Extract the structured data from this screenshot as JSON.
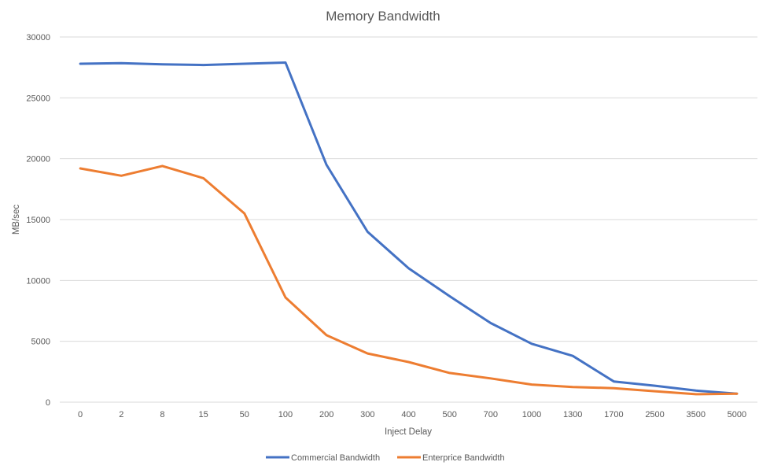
{
  "chart_data": {
    "type": "line",
    "title": "Memory Bandwidth",
    "xlabel": "Inject Delay",
    "ylabel": "MB/sec",
    "categories": [
      "0",
      "2",
      "8",
      "15",
      "50",
      "100",
      "200",
      "300",
      "400",
      "500",
      "700",
      "1000",
      "1300",
      "1700",
      "2500",
      "3500",
      "5000"
    ],
    "ylim": [
      0,
      30000
    ],
    "yticks": [
      "0",
      "5000",
      "10000",
      "15000",
      "20000",
      "25000",
      "30000"
    ],
    "grid": true,
    "legend_position": "bottom",
    "series": [
      {
        "name": "Commercial Bandwidth",
        "color": "#4472C4",
        "values": [
          27800,
          27850,
          27750,
          27700,
          27800,
          27900,
          19500,
          14000,
          11000,
          8700,
          6500,
          4800,
          3800,
          1700,
          1350,
          950,
          700
        ]
      },
      {
        "name": "Enterprice Bandwidth",
        "color": "#ED7D31",
        "values": [
          19200,
          18600,
          19400,
          18400,
          15500,
          8600,
          5500,
          4000,
          3300,
          2400,
          1950,
          1450,
          1250,
          1150,
          900,
          650,
          700
        ]
      }
    ]
  }
}
